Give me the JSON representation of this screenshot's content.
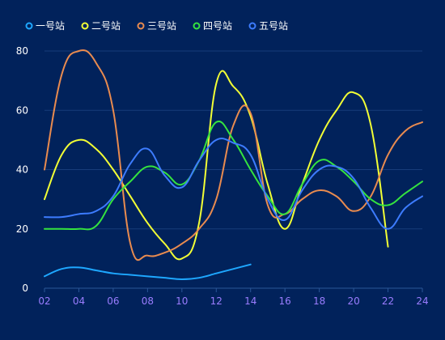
{
  "chart_data": {
    "type": "line",
    "title": "",
    "xlabel": "",
    "ylabel": "",
    "legend_position": "top-left",
    "grid": true,
    "x": [
      2,
      3,
      4,
      5,
      6,
      7,
      8,
      9,
      10,
      11,
      12,
      13,
      14,
      15,
      16,
      17,
      18,
      19,
      20,
      21,
      22,
      23,
      24
    ],
    "x_tick_labels": [
      "02",
      "04",
      "06",
      "08",
      "10",
      "12",
      "14",
      "16",
      "18",
      "20",
      "22",
      "24"
    ],
    "x_tick_values": [
      2,
      4,
      6,
      8,
      10,
      12,
      14,
      16,
      18,
      20,
      22,
      24
    ],
    "xlim": [
      2,
      24
    ],
    "y_tick_labels": [
      "0",
      "20",
      "40",
      "60",
      "80"
    ],
    "y_tick_values": [
      0,
      20,
      40,
      60,
      80
    ],
    "ylim": [
      0,
      80
    ],
    "series": [
      {
        "name": "一号站",
        "color": "#1ea7ff",
        "values": [
          4,
          6.5,
          7,
          6,
          5,
          4.5,
          4,
          3.5,
          3,
          3.5,
          5,
          6.5,
          8,
          null,
          null,
          null,
          null,
          null,
          null,
          null,
          null,
          null,
          null
        ]
      },
      {
        "name": "二号站",
        "color": "#f2ff35",
        "values": [
          30,
          45,
          50,
          47,
          40,
          31,
          22,
          15,
          10,
          22,
          69,
          68,
          58,
          35,
          20,
          35,
          50,
          60,
          66,
          55,
          14,
          null,
          null
        ]
      },
      {
        "name": "三号站",
        "color": "#e98b4f",
        "values": [
          40,
          72,
          80,
          76,
          60,
          15,
          11,
          12,
          15,
          20,
          30,
          55,
          59,
          28,
          25,
          30,
          33,
          31,
          26,
          31,
          45,
          53,
          56
        ]
      },
      {
        "name": "四号站",
        "color": "#35e33f",
        "values": [
          20,
          20,
          20,
          21,
          30,
          36,
          41,
          39,
          35,
          43,
          56,
          50,
          40,
          31,
          25,
          35,
          43,
          41,
          36,
          30,
          28,
          32,
          36
        ]
      },
      {
        "name": "五号站",
        "color": "#3d7cff",
        "values": [
          24,
          24,
          25,
          26,
          31,
          42,
          47,
          38,
          34,
          43,
          50,
          49,
          45,
          30,
          23,
          33,
          40,
          41,
          37,
          27,
          20,
          27,
          31
        ]
      }
    ]
  }
}
